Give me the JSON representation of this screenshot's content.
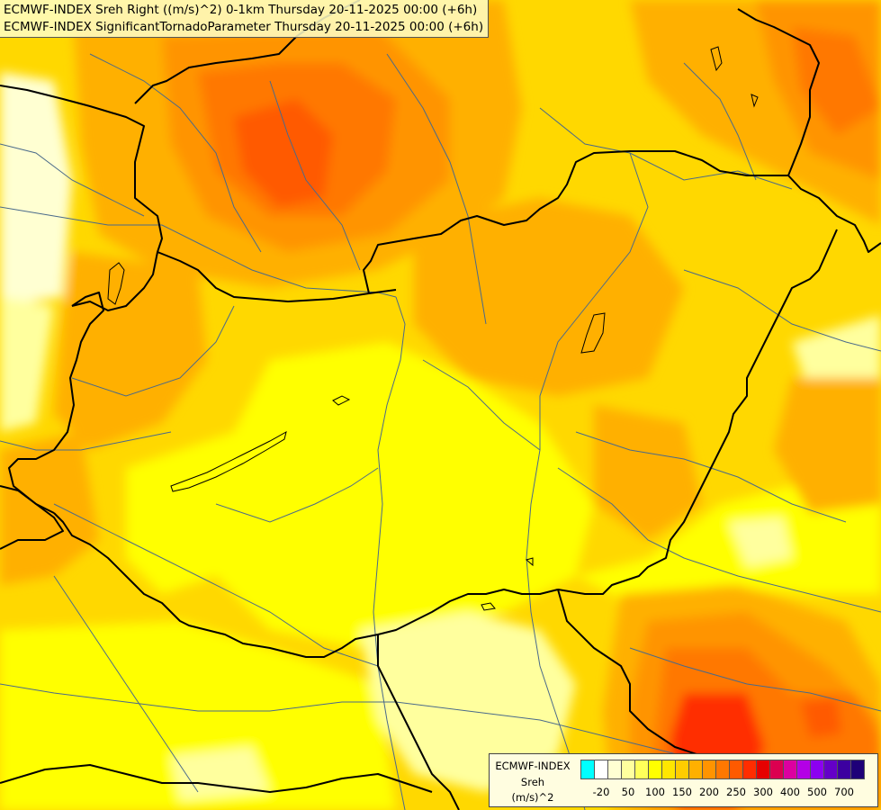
{
  "title": {
    "line1": "ECMWF-INDEX Sreh Right ((m/s)^2) 0-1km Thursday 20-11-2025 00:00 (+6h)",
    "line2": "ECMWF-INDEX SignificantTornadoParameter Thursday 20-11-2025 00:00 (+6h)"
  },
  "legend": {
    "line1": "ECMWF-INDEX",
    "line2": "Sreh",
    "line3": "(m/s)^2",
    "colors": [
      "#00ffff",
      "#ffffff",
      "#ffffd2",
      "#ffff9e",
      "#ffff5a",
      "#ffff00",
      "#ffe600",
      "#ffcc00",
      "#ffb000",
      "#ff9400",
      "#ff7800",
      "#ff5a00",
      "#ff2d00",
      "#e60000",
      "#dc0050",
      "#dc00a0",
      "#b400e6",
      "#8c00f0",
      "#6400c8",
      "#3c00a0",
      "#1e0078"
    ],
    "ticks": [
      "-20",
      "50",
      "100",
      "150",
      "200",
      "250",
      "300",
      "400",
      "500",
      "700"
    ]
  },
  "palette": {
    "base_yellow": "#ffd800",
    "light_yellow": "#ffff5a",
    "pale_yellow": "#ffff9e",
    "cream": "#ffffd2",
    "orange": "#ffb000",
    "dark_orange": "#ff9400",
    "red_orange": "#ff7800",
    "red": "#ff2d00",
    "border_color": "#000000",
    "river_color": "#4a6a8a"
  }
}
